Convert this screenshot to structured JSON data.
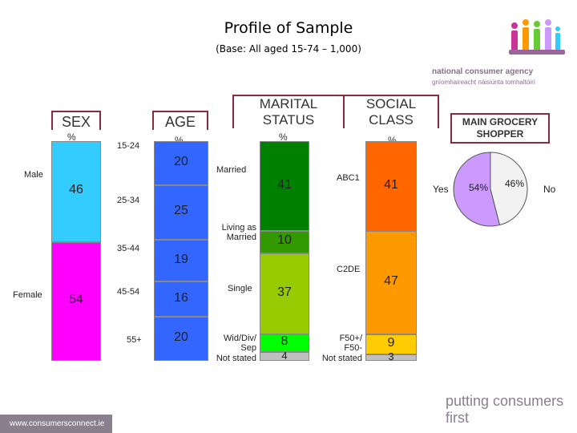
{
  "header": {
    "title": "Profile of Sample",
    "subtitle": "(Base: All aged 15-74 – 1,000)"
  },
  "logo": {
    "line1": "national consumer agency",
    "line2": "gníomhaireacht náisiúnta tomhaltóirí"
  },
  "footer": {
    "url": "www.consumersconnect.ie",
    "tagline": "putting consumers first"
  },
  "colors": {
    "male": "#33ccff",
    "female": "#ff00ff",
    "age": "#3366ff",
    "married": "#008000",
    "living": "#339900",
    "single": "#99cc00",
    "wid": "#00ff00",
    "notstated": "#c0c0c0",
    "abc1": "#ff6600",
    "c2de": "#ff9900",
    "f50plus": "#ffcc00",
    "grocery_yes": "#cc99ff",
    "grocery_no": "#f2f2f2",
    "border_box": "#8b2a3c"
  },
  "chart_data": {
    "type": "bar",
    "stacked": true,
    "unit": "%",
    "columns": [
      {
        "heading": "SEX",
        "unit_label": "%",
        "segments": [
          {
            "label": "Male",
            "value": 46,
            "value_text": "46"
          },
          {
            "label": "Female",
            "value": 54,
            "value_text": "54"
          }
        ]
      },
      {
        "heading": "AGE",
        "unit_label": "%",
        "segments": [
          {
            "label": "15-24",
            "value": 20,
            "value_text": "20"
          },
          {
            "label": "25-34",
            "value": 25,
            "value_text": "25"
          },
          {
            "label": "35-44",
            "value": 19,
            "value_text": "19"
          },
          {
            "label": "45-54",
            "value": 16,
            "value_text": "16"
          },
          {
            "label": "55+",
            "value": 20,
            "value_text": "20"
          }
        ]
      },
      {
        "heading": "MARITAL STATUS",
        "unit_label": "%",
        "segments": [
          {
            "label": "Married",
            "value": 41,
            "value_text": "41"
          },
          {
            "label": "Living as Married",
            "value": 10,
            "value_text": "10"
          },
          {
            "label": "Single",
            "value": 37,
            "value_text": "37"
          },
          {
            "label": "Wid/Div/ Sep",
            "value": 8,
            "value_text": "8"
          },
          {
            "label": "Not stated",
            "value": 4,
            "value_text": "4"
          }
        ]
      },
      {
        "heading": "SOCIAL CLASS",
        "unit_label": "%",
        "segments": [
          {
            "label": "ABC1",
            "value": 41,
            "value_text": "41"
          },
          {
            "label": "C2DE",
            "value": 47,
            "value_text": "47"
          },
          {
            "label": "F50+/ F50-",
            "value": 9,
            "value_text": "9"
          },
          {
            "label": "Not stated",
            "value": 3,
            "value_text": "3"
          }
        ]
      }
    ],
    "pie": {
      "heading": "MAIN GROCERY SHOPPER",
      "type": "pie",
      "slices": [
        {
          "label": "Yes",
          "value": 54,
          "value_text": "54%"
        },
        {
          "label": "No",
          "value": 46,
          "value_text": "46%"
        }
      ]
    }
  }
}
